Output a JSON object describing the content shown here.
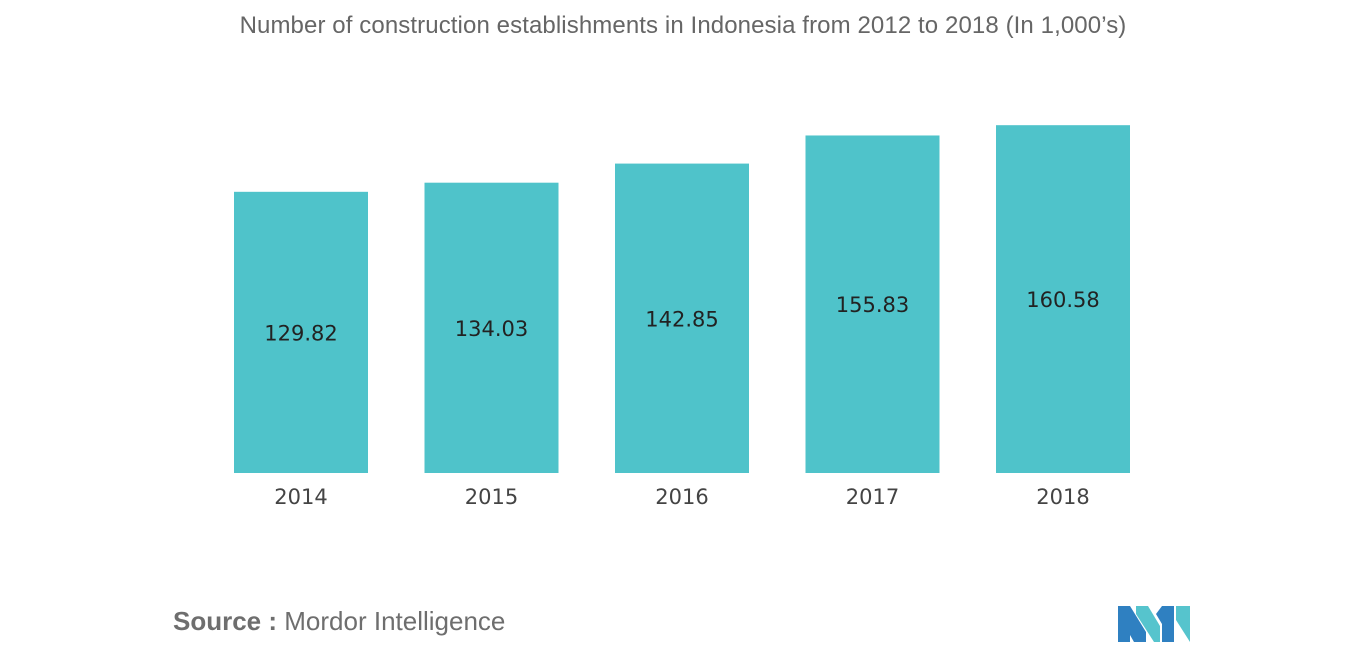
{
  "chart_data": {
    "type": "bar",
    "title": "Number of construction establishments in Indonesia from 2012 to 2018 (In 1,000’s)",
    "categories": [
      "2014",
      "2015",
      "2016",
      "2017",
      "2018"
    ],
    "values": [
      129.82,
      134.03,
      142.85,
      155.83,
      160.58
    ],
    "value_labels": [
      "129.82",
      "134.03",
      "142.85",
      "155.83",
      "160.58"
    ],
    "xlabel": "",
    "ylabel": "",
    "ylim": [
      0,
      165
    ],
    "grid": false,
    "legend": "none",
    "colors": {
      "bar": "#4fc3ca",
      "label": "#222222",
      "tick": "#444444"
    }
  },
  "source": {
    "label": "Source :",
    "text": "Mordor Intelligence"
  },
  "logo": {
    "icon": "mordor-intelligence-logo-icon",
    "colors": [
      "#2f80c1",
      "#56c4cd"
    ]
  }
}
